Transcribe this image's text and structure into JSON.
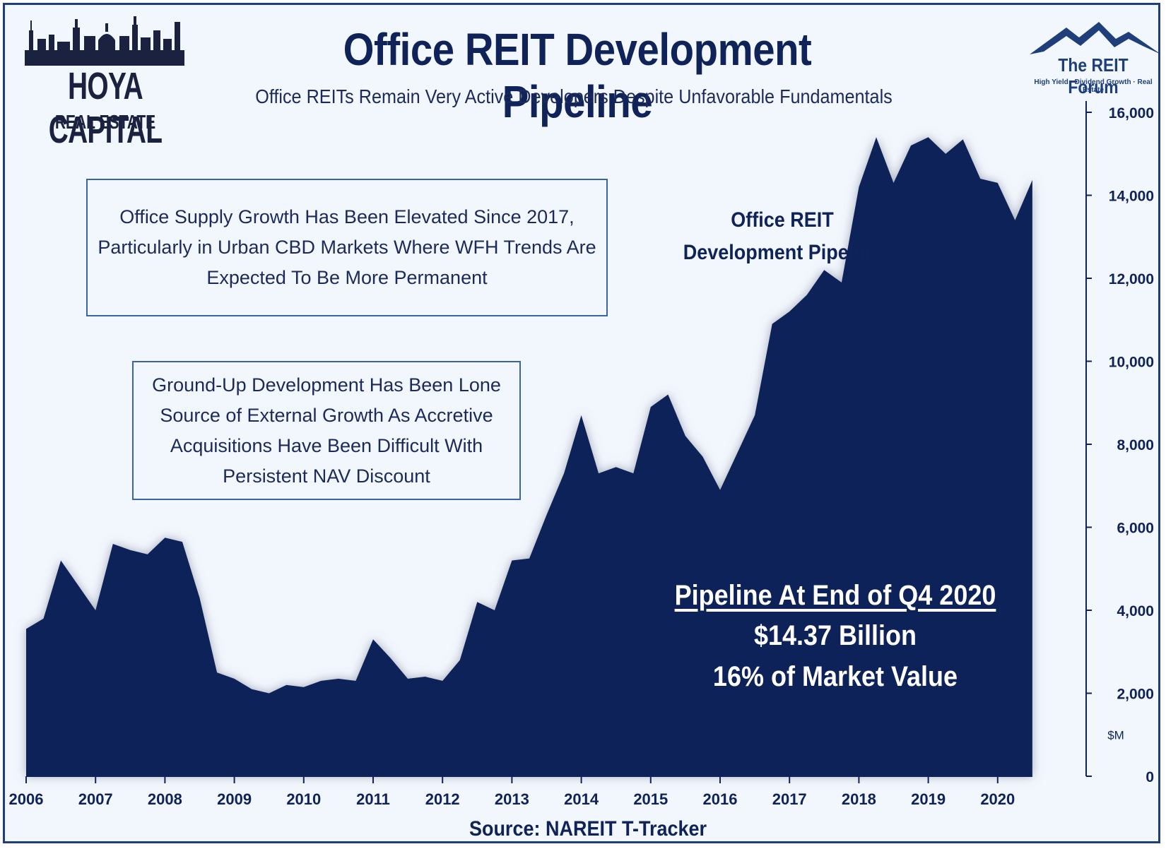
{
  "title": "Office REIT Development Pipeline",
  "subtitle": "Office REITs Remain Very Active Developers Despite Unfavorable Fundamentals",
  "logo_left": {
    "brand": "HOYA CAPITAL",
    "sub": "REAL ESTATE"
  },
  "logo_right": {
    "brand": "The REIT Forum",
    "tagline": "High Yield · Dividend Growth · Real Estate"
  },
  "callouts": [
    {
      "lines": [
        "Office Supply Growth Has Been Elevated Since 2017,",
        "Particularly  in Urban CBD Markets Where WFH Trends Are",
        "Expected To Be More Permanent"
      ]
    },
    {
      "lines": [
        "Ground-Up Development Has Been Lone",
        "Source of External Growth As Accretive",
        "Acquisitions Have Been Difficult With",
        "Persistent NAV Discount"
      ]
    }
  ],
  "series_label": [
    "Office REIT",
    "Development Pipeline"
  ],
  "stat": {
    "heading": "Pipeline At End of Q4 2020",
    "value": "$14.37 Billion",
    "share": "16% of Market Value"
  },
  "source": "Source: NAREIT T-Tracker",
  "colors": {
    "area": "#0f2359",
    "background": "#f2f6fd",
    "accent": "#1f3f7a"
  },
  "chart_data": {
    "type": "area",
    "series": [
      {
        "values": [
          3550,
          3800,
          5200,
          4600,
          4000,
          5600,
          5450,
          5350,
          5750,
          5650,
          4300,
          2500,
          2350,
          2100,
          2000,
          2200,
          2150,
          2300,
          2350,
          2300,
          3300,
          2850,
          2350,
          2400,
          2300,
          2800,
          4200,
          4000,
          5200,
          5250,
          6300,
          7300,
          8700,
          7300,
          7450,
          7300,
          8900,
          9200,
          8200,
          7700,
          6900,
          7800,
          8700,
          10900,
          11200,
          11600,
          12200,
          11900,
          14200,
          15400,
          14300,
          15200,
          15400,
          15000,
          15350,
          14400,
          14300,
          13400,
          14370
        ]
      }
    ],
    "x_start_year": 2006,
    "points_per_year": 4,
    "x_tick_labels": [
      "2006",
      "2007",
      "2008",
      "2009",
      "2010",
      "2011",
      "2012",
      "2013",
      "2014",
      "2015",
      "2016",
      "2017",
      "2018",
      "2019",
      "2020"
    ],
    "y_ticks": [
      0,
      2000,
      4000,
      6000,
      8000,
      10000,
      12000,
      14000,
      16000
    ],
    "y_tick_labels": [
      "0",
      "2,000",
      "4,000",
      "6,000",
      "8,000",
      "10,000",
      "12,000",
      "14,000",
      "16,000"
    ],
    "ylim": [
      0,
      16000
    ],
    "y_unit_label": "$M",
    "y_axis_side": "right",
    "grid": false
  }
}
